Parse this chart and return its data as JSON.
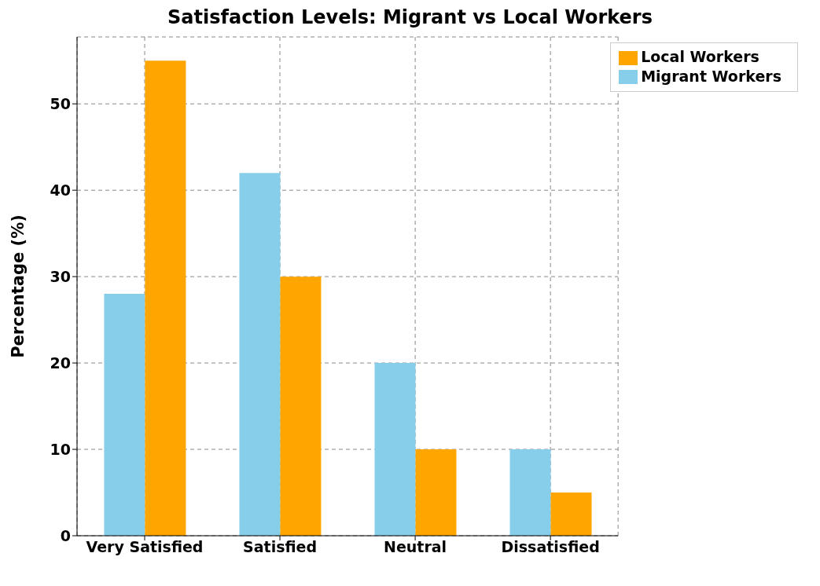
{
  "chart_data": {
    "type": "bar",
    "title": "Satisfaction Levels: Migrant vs Local Workers",
    "ylabel": "Percentage (%)",
    "categories": [
      "Very Satisfied",
      "Satisfied",
      "Neutral",
      "Dissatisfied"
    ],
    "series": [
      {
        "name": "Migrant Workers",
        "color": "#87ceeb",
        "values": [
          28,
          42,
          20,
          10
        ]
      },
      {
        "name": "Local Workers",
        "color": "#ffa500",
        "values": [
          55,
          30,
          10,
          5
        ]
      }
    ],
    "ylim": [
      0,
      57.75
    ],
    "yticks": [
      0,
      10,
      20,
      30,
      40,
      50
    ],
    "grid": true,
    "legend": "top right"
  }
}
